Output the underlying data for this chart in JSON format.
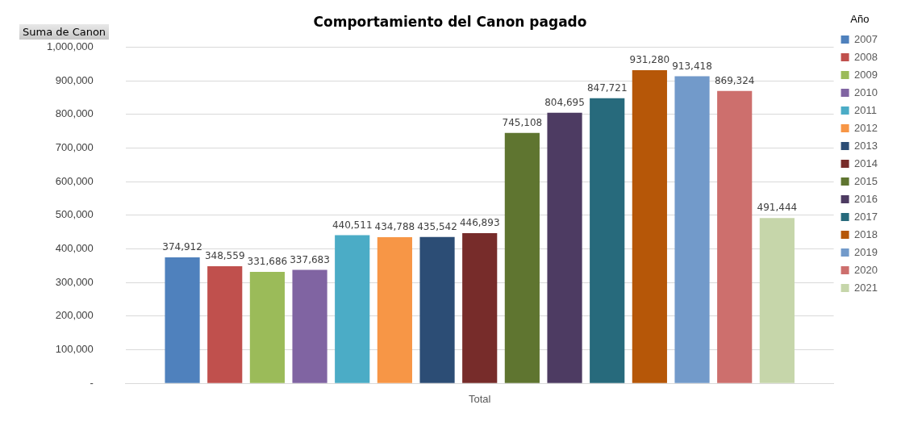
{
  "chart_data": {
    "type": "bar",
    "title": "Comportamiento del Canon pagado",
    "ylabel": "Suma de Canon",
    "xlabel": "Total",
    "legend_title": "Año",
    "categories": [
      null
    ],
    "series": [
      {
        "name": "2007",
        "color": "#4f81bd",
        "values": [
          374912
        ],
        "value_labels": [
          "374,912"
        ]
      },
      {
        "name": "2008",
        "color": "#c0504d",
        "values": [
          348559
        ],
        "value_labels": [
          "348,559"
        ]
      },
      {
        "name": "2009",
        "color": "#9bbb59",
        "values": [
          331686
        ],
        "value_labels": [
          "331,686"
        ]
      },
      {
        "name": "2010",
        "color": "#8064a2",
        "values": [
          337683
        ],
        "value_labels": [
          "337,683"
        ]
      },
      {
        "name": "2011",
        "color": "#4bacc6",
        "values": [
          440511
        ],
        "value_labels": [
          "440,511"
        ]
      },
      {
        "name": "2012",
        "color": "#f79646",
        "values": [
          434788
        ],
        "value_labels": [
          "434,788"
        ]
      },
      {
        "name": "2013",
        "color": "#2c4d75",
        "values": [
          435542
        ],
        "value_labels": [
          "435,542"
        ]
      },
      {
        "name": "2014",
        "color": "#772c2a",
        "values": [
          446893
        ],
        "value_labels": [
          "446,893"
        ]
      },
      {
        "name": "2015",
        "color": "#5f7530",
        "values": [
          745108
        ],
        "value_labels": [
          "745,108"
        ]
      },
      {
        "name": "2016",
        "color": "#4d3b62",
        "values": [
          804695
        ],
        "value_labels": [
          "804,695"
        ]
      },
      {
        "name": "2017",
        "color": "#276a7c",
        "values": [
          847721
        ],
        "value_labels": [
          "847,721"
        ]
      },
      {
        "name": "2018",
        "color": "#b65708",
        "values": [
          931280
        ],
        "value_labels": [
          "931,280"
        ]
      },
      {
        "name": "2019",
        "color": "#729aca",
        "values": [
          913418
        ],
        "value_labels": [
          "913,418"
        ]
      },
      {
        "name": "2020",
        "color": "#cd6f6d",
        "values": [
          869324
        ],
        "value_labels": [
          "869,324"
        ]
      },
      {
        "name": "2021",
        "color": "#c6d6aa",
        "values": [
          491444
        ],
        "value_labels": [
          "491,444"
        ]
      }
    ],
    "ylim": [
      0,
      1000000
    ],
    "yticks": [
      {
        "value": 0,
        "label": "-"
      },
      {
        "value": 100000,
        "label": "100,000"
      },
      {
        "value": 200000,
        "label": "200,000"
      },
      {
        "value": 300000,
        "label": "300,000"
      },
      {
        "value": 400000,
        "label": "400,000"
      },
      {
        "value": 500000,
        "label": "500,000"
      },
      {
        "value": 600000,
        "label": "600,000"
      },
      {
        "value": 700000,
        "label": "700,000"
      },
      {
        "value": 800000,
        "label": "800,000"
      },
      {
        "value": 900000,
        "label": "900,000"
      },
      {
        "value": 1000000,
        "label": "1,000,000"
      }
    ],
    "grid": "y",
    "legend": "right"
  }
}
